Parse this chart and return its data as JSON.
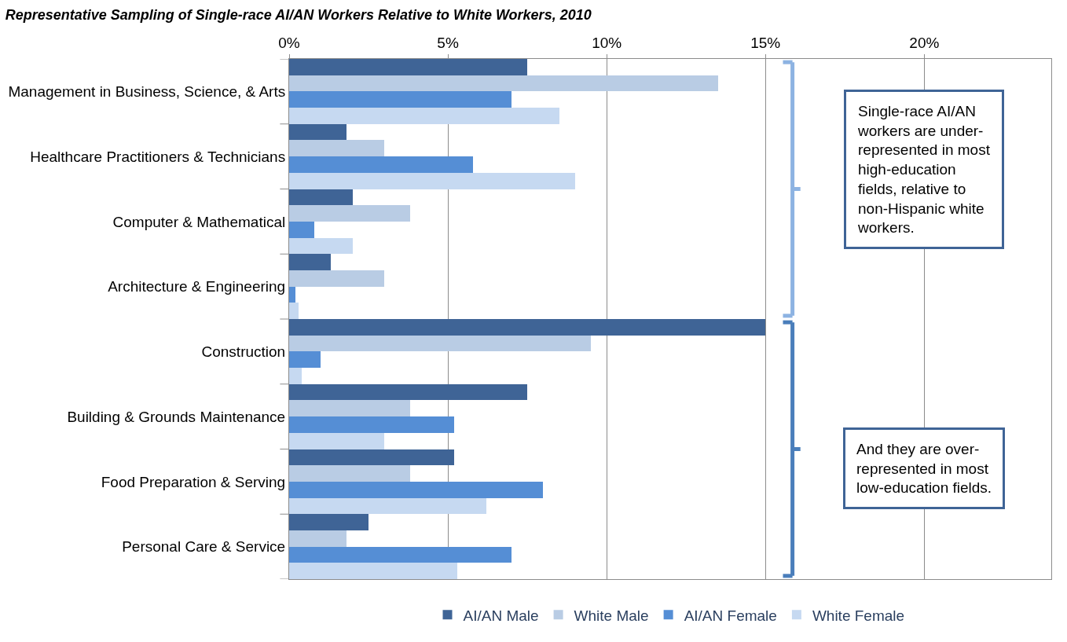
{
  "chart_data": {
    "type": "bar",
    "orientation": "horizontal",
    "title": "Representative Sampling of Single-race AI/AN Workers Relative to White Workers, 2010",
    "categories": [
      "Management in Business, Science, & Arts",
      "Healthcare Practitioners & Technicians",
      "Computer & Mathematical",
      "Architecture & Engineering",
      "Construction",
      "Building & Grounds Maintenance",
      "Food Preparation & Serving",
      "Personal Care & Service"
    ],
    "series": [
      {
        "name": "AI/AN Male",
        "color": "#3f6496",
        "values": [
          7.5,
          1.8,
          2.0,
          1.3,
          15.0,
          7.5,
          5.2,
          2.5
        ]
      },
      {
        "name": "White Male",
        "color": "#b9cce4",
        "values": [
          13.5,
          3.0,
          3.8,
          3.0,
          9.5,
          3.8,
          3.8,
          1.8
        ]
      },
      {
        "name": "AI/AN Female",
        "color": "#558ed5",
        "values": [
          7.0,
          5.8,
          0.8,
          0.2,
          1.0,
          5.2,
          8.0,
          7.0
        ]
      },
      {
        "name": "White Female",
        "color": "#c6d9f1",
        "values": [
          8.5,
          9.0,
          2.0,
          0.3,
          0.4,
          3.0,
          6.2,
          5.3
        ]
      }
    ],
    "xlim": [
      0,
      24
    ],
    "xticks": [
      {
        "value": 0,
        "label": "0%"
      },
      {
        "value": 5,
        "label": "5%"
      },
      {
        "value": 10,
        "label": "10%"
      },
      {
        "value": 15,
        "label": "15%"
      },
      {
        "value": 20,
        "label": "20%"
      }
    ],
    "grid": "x",
    "legend": "bottom",
    "annotations": [
      "Single-race AI/AN workers are under-represented in most high-education fields, relative to non-Hispanic white workers.",
      "And they are over-represented in most low-education fields."
    ]
  }
}
